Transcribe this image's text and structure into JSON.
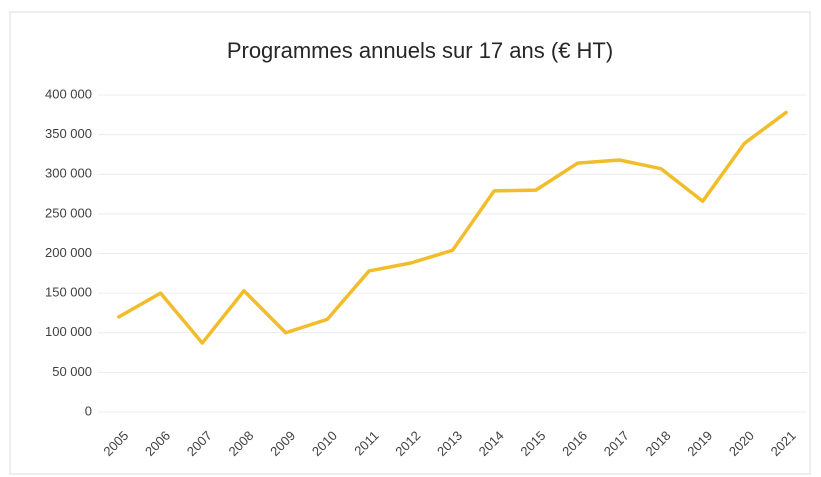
{
  "chart_data": {
    "type": "line",
    "title": "Programmes annuels sur 17 ans (€ HT)",
    "categories": [
      "2005",
      "2006",
      "2007",
      "2008",
      "2009",
      "2010",
      "2011",
      "2012",
      "2013",
      "2014",
      "2015",
      "2016",
      "2017",
      "2018",
      "2019",
      "2020",
      "2021"
    ],
    "values": [
      120000,
      150000,
      87000,
      153000,
      100000,
      117000,
      178000,
      188000,
      204000,
      279000,
      280000,
      314000,
      318000,
      307000,
      266000,
      339000,
      378000
    ],
    "color": "#f2bd2a",
    "ylim": [
      0,
      400000
    ],
    "yticks": [
      0,
      {
        "value": 50000,
        "label": "50 000"
      },
      {
        "value": 100000,
        "label": "100 000"
      },
      {
        "value": 150000,
        "label": "150 000"
      },
      {
        "value": 200000,
        "label": "200 000"
      },
      {
        "value": 250000,
        "label": "250 000"
      },
      {
        "value": 300000,
        "label": "300 000"
      },
      {
        "value": 350000,
        "label": "350 000"
      },
      {
        "value": 400000,
        "label": "400 000"
      }
    ],
    "grid": true
  }
}
